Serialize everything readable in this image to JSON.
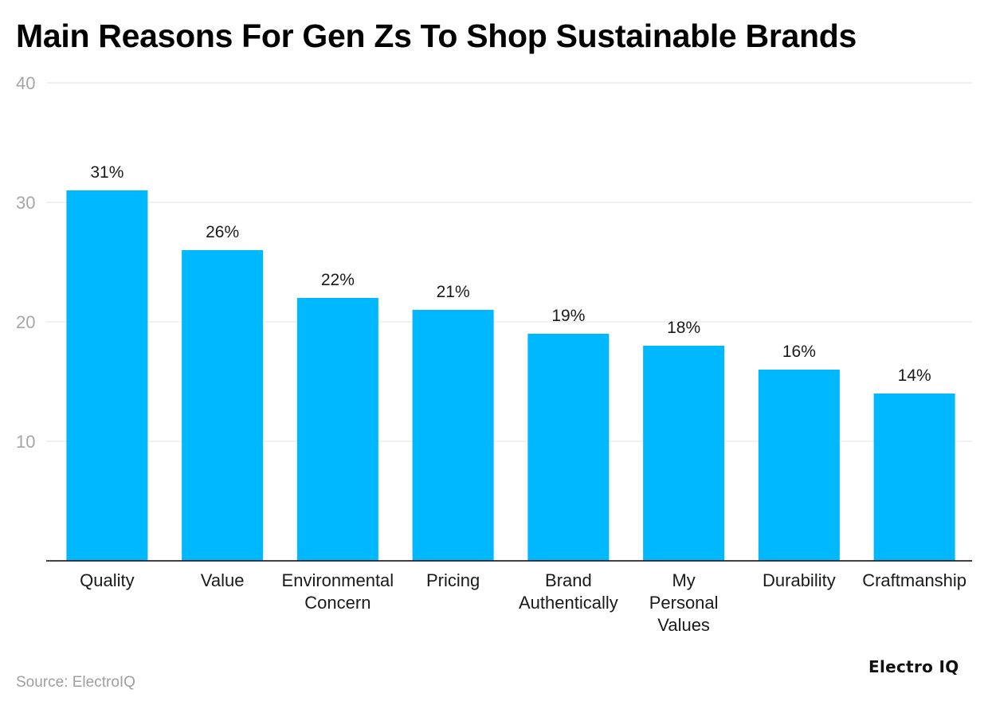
{
  "chart_data": {
    "type": "bar",
    "title": "Main Reasons For Gen Zs To Shop Sustainable Brands",
    "categories": [
      [
        "Quality"
      ],
      [
        "Value"
      ],
      [
        "Environmental",
        "Concern"
      ],
      [
        "Pricing"
      ],
      [
        "Brand",
        "Authentically"
      ],
      [
        "My",
        "Personal",
        "Values"
      ],
      [
        "Durability"
      ],
      [
        "Craftmanship"
      ]
    ],
    "values": [
      31,
      26,
      22,
      21,
      19,
      18,
      16,
      14
    ],
    "value_labels": [
      "31%",
      "26%",
      "22%",
      "21%",
      "19%",
      "18%",
      "16%",
      "14%"
    ],
    "y_ticks": [
      "10",
      "20",
      "30",
      "40"
    ],
    "ylim": [
      0,
      40
    ],
    "xlabel": "",
    "ylabel": "",
    "grid": true,
    "bar_color": "#00b8ff"
  },
  "source": "Source: ElectroIQ",
  "logo": "Electro IQ"
}
